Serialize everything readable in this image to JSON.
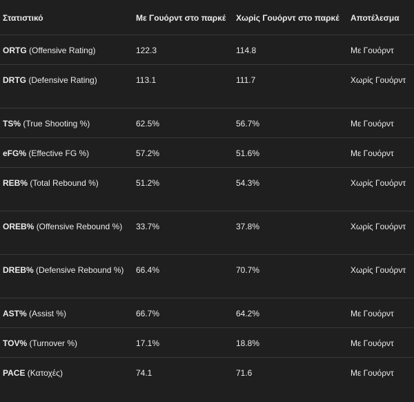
{
  "table": {
    "headers": [
      "Στατιστικό",
      "Με Γουόρντ στο παρκέ",
      "Χωρίς Γουόρντ στο παρκέ",
      "Αποτέλεσμα"
    ],
    "rows": [
      {
        "abbr": "ORTG",
        "full": "(Offensive Rating)",
        "with": "122.3",
        "without": "114.8",
        "result": "Με Γουόρντ"
      },
      {
        "abbr": "DRTG",
        "full": "(Defensive Rating)",
        "with": "113.1",
        "without": "111.7",
        "result": "Χωρίς Γουόρντ"
      },
      {
        "abbr": "TS%",
        "full": "(True Shooting %)",
        "with": "62.5%",
        "without": "56.7%",
        "result": "Με Γουόρντ"
      },
      {
        "abbr": "eFG%",
        "full": "(Effective FG %)",
        "with": "57.2%",
        "without": "51.6%",
        "result": "Με Γουόρντ"
      },
      {
        "abbr": "REB%",
        "full": "(Total Rebound %)",
        "with": "51.2%",
        "without": "54.3%",
        "result": "Χωρίς Γουόρντ"
      },
      {
        "abbr": "OREB%",
        "full": "(Offensive Rebound %)",
        "with": "33.7%",
        "without": "37.8%",
        "result": "Χωρίς Γουόρντ"
      },
      {
        "abbr": "DREB%",
        "full": "(Defensive Rebound %)",
        "with": "66.4%",
        "without": "70.7%",
        "result": "Χωρίς Γουόρντ"
      },
      {
        "abbr": "AST%",
        "full": "(Assist %)",
        "with": "66.7%",
        "without": "64.2%",
        "result": "Με Γουόρντ"
      },
      {
        "abbr": "TOV%",
        "full": "(Turnover %)",
        "with": "17.1%",
        "without": "18.8%",
        "result": "Με Γουόρντ"
      },
      {
        "abbr": "PACE",
        "full": "(Κατοχές)",
        "with": "74.1",
        "without": "71.6",
        "result": "Με Γουόρντ"
      }
    ]
  },
  "colors": {
    "background": "#1f1f1f",
    "text": "#ececec",
    "divider": "#3a3a3a"
  }
}
